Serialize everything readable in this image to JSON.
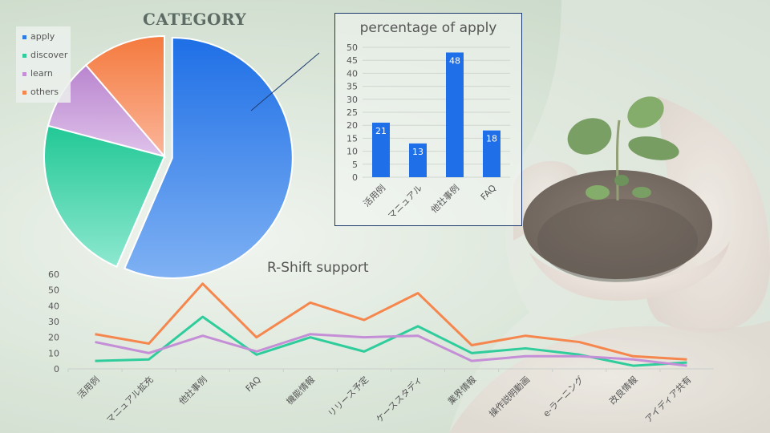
{
  "colors": {
    "apply": "#2f7be6",
    "discover": "#2fcc9c",
    "learn": "#c48fd6",
    "others": "#f5874e",
    "bar": "#1f6fe8",
    "panel_border": "#1f3a6e"
  },
  "chart_data": [
    {
      "type": "pie",
      "title": "CATEGORY",
      "legend_position": "top-left",
      "labels": [
        "apply",
        "discover",
        "learn",
        "others"
      ],
      "values": [
        100,
        40,
        17,
        20
      ],
      "exploded": "apply"
    },
    {
      "type": "bar",
      "title": "percentage of apply",
      "categories": [
        "活用例",
        "マニュアル",
        "他社事例",
        "FAQ"
      ],
      "values": [
        21,
        13,
        48,
        18
      ],
      "ylim": [
        0,
        50
      ],
      "yticks": [
        0,
        5,
        10,
        15,
        20,
        25,
        30,
        35,
        40,
        45,
        50
      ],
      "grid": true,
      "data_labels": true
    },
    {
      "type": "line",
      "title": "R-Shift support",
      "categories": [
        "活用例",
        "マニュアル拡充",
        "他社事例",
        "FAQ",
        "機能情報",
        "リリース予定",
        "ケーススタディ",
        "業界情報",
        "操作説明動画",
        "e-ラーニング",
        "改良情報",
        "アイディア共有"
      ],
      "ylim": [
        0,
        60
      ],
      "yticks": [
        0,
        10,
        20,
        30,
        40,
        50,
        60
      ],
      "series": [
        {
          "key": "others",
          "values": [
            22,
            16,
            54,
            20,
            42,
            31,
            48,
            15,
            21,
            17,
            8,
            6
          ]
        },
        {
          "key": "discover",
          "values": [
            5,
            6,
            33,
            9,
            20,
            11,
            27,
            10,
            13,
            9,
            2,
            4
          ]
        },
        {
          "key": "learn",
          "values": [
            17,
            10,
            21,
            11,
            22,
            20,
            21,
            5,
            8,
            8,
            6,
            2
          ]
        }
      ]
    }
  ]
}
